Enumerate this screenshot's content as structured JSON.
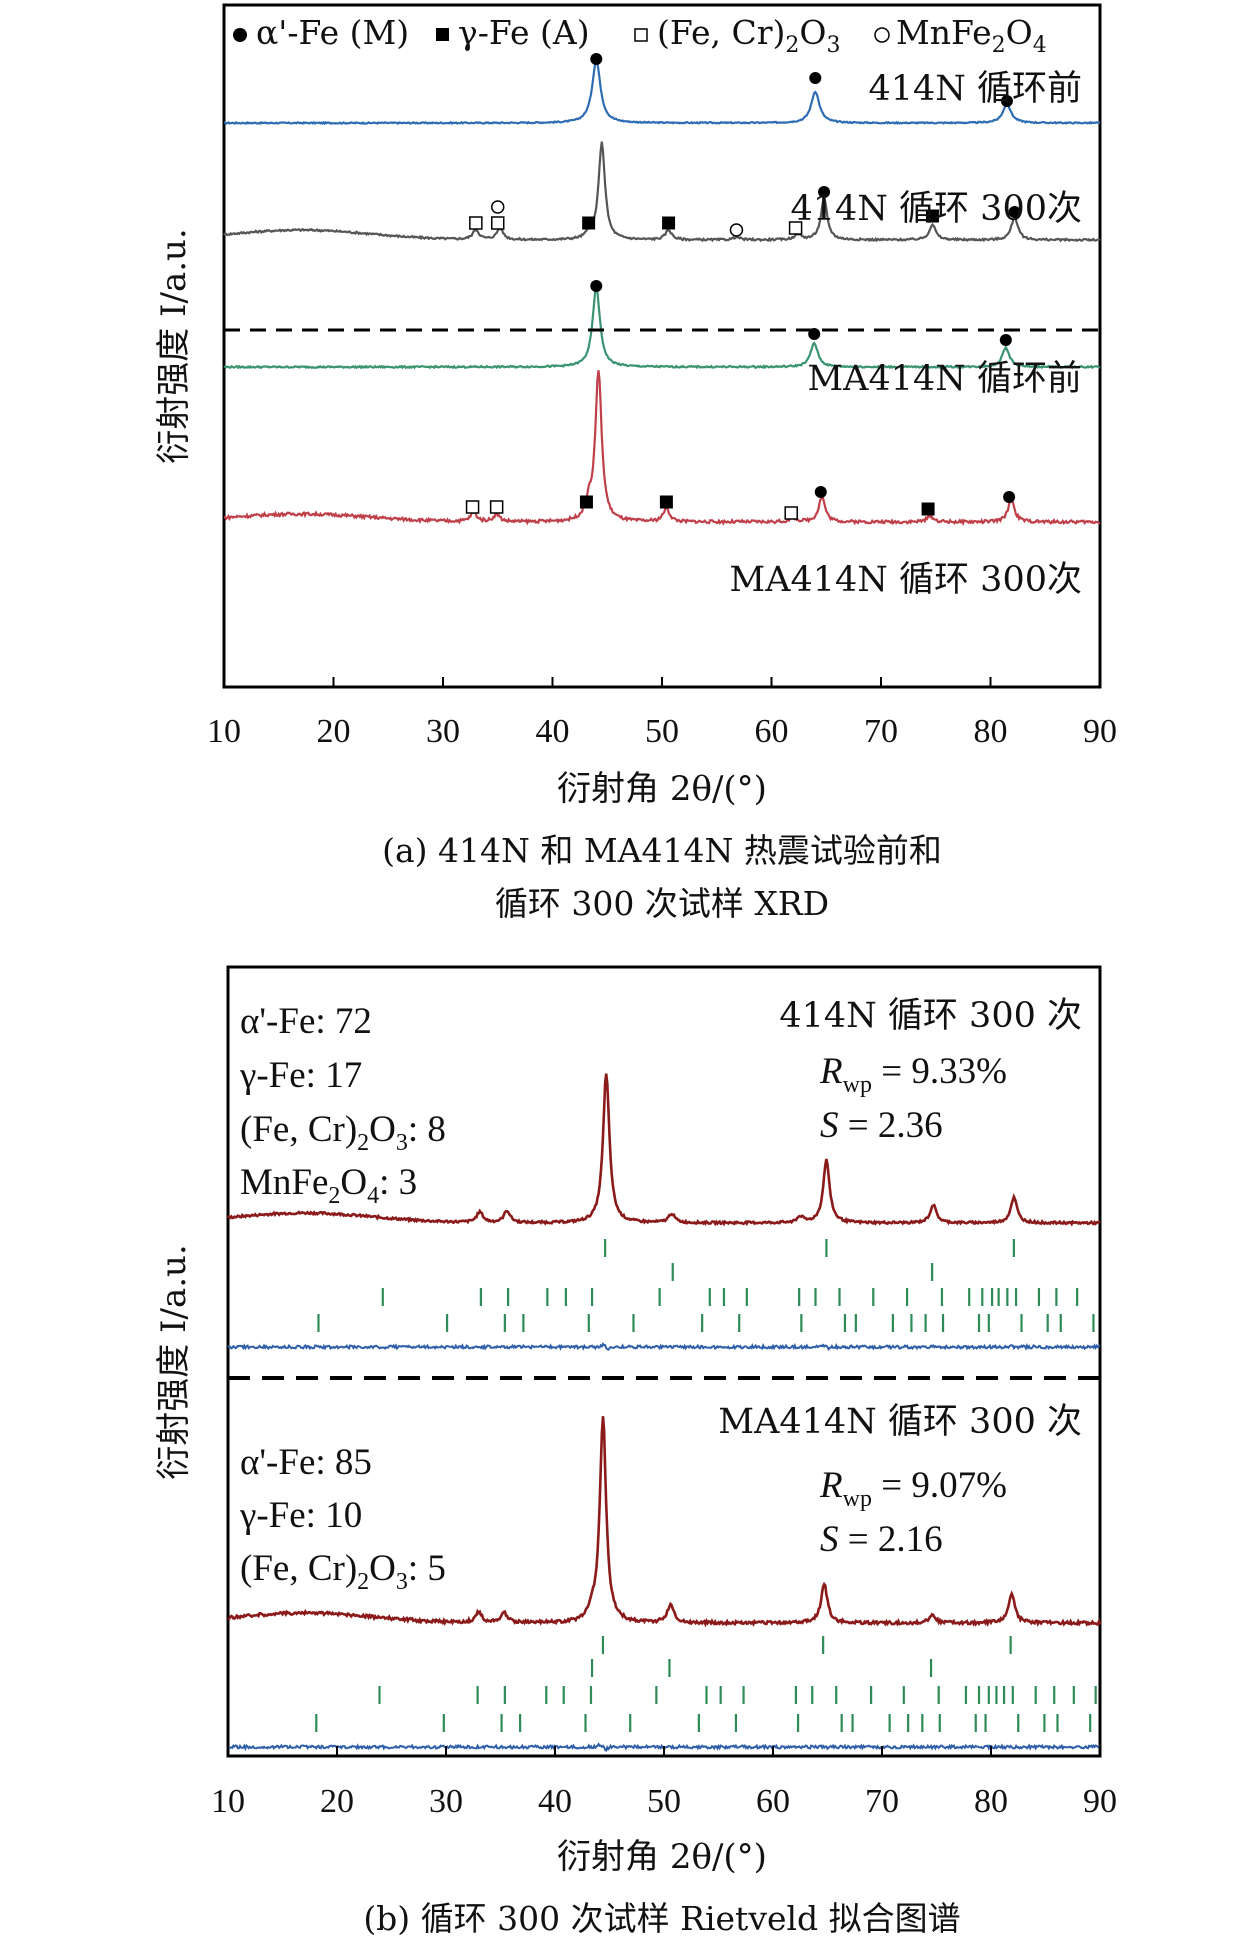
{
  "chart_data": [
    {
      "panel": "a",
      "type": "line",
      "caption_line1": "(a) 414N 和 MA414N 热震试验前和",
      "caption_line2": "循环 300 次试样 XRD",
      "xlabel": "衍射角 2θ/(°)",
      "ylabel": "衍射强度 I/a.u.",
      "xlim": [
        10,
        90
      ],
      "xticks": [
        "10",
        "20",
        "30",
        "40",
        "50",
        "60",
        "70",
        "80",
        "90"
      ],
      "legend": [
        {
          "symbol": "filled-circle",
          "label": "α'-Fe (M)"
        },
        {
          "symbol": "filled-square",
          "label": "γ-Fe (A)"
        },
        {
          "symbol": "open-square",
          "label": "(Fe, Cr)2O3"
        },
        {
          "symbol": "open-circle",
          "label": "MnFe2O4"
        }
      ],
      "series": [
        {
          "name": "414N 循环前",
          "color": "#2e6db4",
          "peaks": [
            [
              44.0,
              1.0
            ],
            [
              64.0,
              0.5
            ],
            [
              81.5,
              0.3
            ]
          ],
          "markers": [
            {
              "x": 44.0,
              "phase": "filled-circle"
            },
            {
              "x": 64.0,
              "phase": "filled-circle"
            },
            {
              "x": 81.5,
              "phase": "filled-circle"
            }
          ]
        },
        {
          "name": "414N 循环 300次",
          "color": "#555555",
          "peaks": [
            [
              33.0,
              0.1
            ],
            [
              35.2,
              0.12
            ],
            [
              43.4,
              0.06
            ],
            [
              44.5,
              1.0
            ],
            [
              50.6,
              0.1
            ],
            [
              56.8,
              0.03
            ],
            [
              62.4,
              0.06
            ],
            [
              64.8,
              0.42
            ],
            [
              74.7,
              0.16
            ],
            [
              82.2,
              0.24
            ]
          ],
          "markers": [
            {
              "x": 33.0,
              "phase": "open-square"
            },
            {
              "x": 35.0,
              "phase": "open-square"
            },
            {
              "x": 35.0,
              "phase": "open-circle"
            },
            {
              "x": 43.3,
              "phase": "filled-square"
            },
            {
              "x": 50.6,
              "phase": "filled-square"
            },
            {
              "x": 56.8,
              "phase": "open-circle"
            },
            {
              "x": 62.2,
              "phase": "open-square"
            },
            {
              "x": 64.8,
              "phase": "filled-circle"
            },
            {
              "x": 74.7,
              "phase": "filled-square"
            },
            {
              "x": 82.2,
              "phase": "filled-circle"
            }
          ]
        },
        {
          "name": "MA414N 循环前",
          "color": "#3a9470",
          "peaks": [
            [
              44.0,
              1.0
            ],
            [
              63.9,
              0.3
            ],
            [
              81.4,
              0.24
            ]
          ],
          "markers": [
            {
              "x": 44.0,
              "phase": "filled-circle"
            },
            {
              "x": 63.9,
              "phase": "filled-circle"
            },
            {
              "x": 81.4,
              "phase": "filled-circle"
            }
          ]
        },
        {
          "name": "MA414N 循环 300次",
          "color": "#c0404a",
          "peaks": [
            [
              32.8,
              0.06
            ],
            [
              34.9,
              0.05
            ],
            [
              43.3,
              0.1
            ],
            [
              44.2,
              1.0
            ],
            [
              50.4,
              0.09
            ],
            [
              62.0,
              0.03
            ],
            [
              64.6,
              0.17
            ],
            [
              74.5,
              0.04
            ],
            [
              81.9,
              0.15
            ]
          ],
          "markers": [
            {
              "x": 32.7,
              "phase": "open-square"
            },
            {
              "x": 34.9,
              "phase": "open-square"
            },
            {
              "x": 43.1,
              "phase": "filled-square"
            },
            {
              "x": 50.4,
              "phase": "filled-square"
            },
            {
              "x": 61.8,
              "phase": "open-square"
            },
            {
              "x": 64.5,
              "phase": "filled-circle"
            },
            {
              "x": 74.3,
              "phase": "filled-square"
            },
            {
              "x": 81.7,
              "phase": "filled-circle"
            }
          ]
        }
      ]
    },
    {
      "panel": "b",
      "type": "line",
      "caption": "(b) 循环 300 次试样 Rietveld 拟合图谱",
      "xlabel": "衍射角 2θ/(°)",
      "ylabel": "衍射强度 I/a.u.",
      "xlim": [
        10,
        90
      ],
      "xticks": [
        "10",
        "20",
        "30",
        "40",
        "50",
        "60",
        "70",
        "80",
        "90"
      ],
      "subplots": [
        {
          "name": "414N 循环 300 次",
          "rwp": "9.33%",
          "s": "2.36",
          "phase_fractions": [
            {
              "label": "α'-Fe",
              "value": "72"
            },
            {
              "label": "γ-Fe",
              "value": "17"
            },
            {
              "label": "(Fe, Cr)2O3",
              "value": "8"
            },
            {
              "label": "MnFe2O4",
              "value": "3"
            }
          ],
          "observed_color": "#8b1a1a",
          "difference_color": "#2f5fa8",
          "tick_color": "#2e8b57",
          "peaks": [
            [
              33.1,
              0.07
            ],
            [
              35.6,
              0.08
            ],
            [
              44.7,
              1.0
            ],
            [
              50.7,
              0.06
            ],
            [
              62.5,
              0.04
            ],
            [
              64.9,
              0.42
            ],
            [
              74.7,
              0.12
            ],
            [
              82.1,
              0.17
            ]
          ],
          "reflection_rows": [
            [
              44.6,
              64.9,
              82.1
            ],
            [
              50.8,
              74.6
            ],
            [
              24.2,
              33.2,
              35.7,
              39.3,
              41.0,
              43.4,
              49.6,
              54.2,
              55.5,
              57.6,
              62.4,
              63.9,
              66.1,
              69.2,
              72.3,
              75.5,
              78.0,
              79.2,
              80.1,
              80.7,
              81.5,
              82.3,
              84.4,
              86.0,
              87.9
            ],
            [
              18.3,
              30.1,
              35.4,
              37.1,
              43.1,
              47.2,
              53.5,
              56.9,
              62.6,
              66.6,
              67.6,
              71.0,
              72.7,
              74.0,
              75.6,
              78.9,
              79.8,
              82.8,
              85.2,
              86.4,
              89.4
            ]
          ]
        },
        {
          "name": "MA414N 循环 300 次",
          "rwp": "9.07%",
          "s": "2.16",
          "phase_fractions": [
            {
              "label": "α'-Fe",
              "value": "85"
            },
            {
              "label": "γ-Fe",
              "value": "10"
            },
            {
              "label": "(Fe, Cr)2O3",
              "value": "5"
            }
          ],
          "observed_color": "#8b1a1a",
          "difference_color": "#2f5fa8",
          "tick_color": "#2e8b57",
          "peaks": [
            [
              33.0,
              0.05
            ],
            [
              35.3,
              0.05
            ],
            [
              43.4,
              0.04
            ],
            [
              44.4,
              1.0
            ],
            [
              50.6,
              0.09
            ],
            [
              64.7,
              0.19
            ],
            [
              74.6,
              0.04
            ],
            [
              81.9,
              0.14
            ]
          ],
          "reflection_rows": [
            [
              44.4,
              64.6,
              81.8
            ],
            [
              43.4,
              50.5,
              74.5
            ],
            [
              23.9,
              32.9,
              35.4,
              39.2,
              40.8,
              43.3,
              49.3,
              53.9,
              55.2,
              57.3,
              62.1,
              63.6,
              65.8,
              69.0,
              72.0,
              75.2,
              77.7,
              78.9,
              79.8,
              80.5,
              81.2,
              82.0,
              84.1,
              85.8,
              87.6,
              89.6
            ],
            [
              18.1,
              29.8,
              35.1,
              36.8,
              42.8,
              46.9,
              53.2,
              56.6,
              62.3,
              66.3,
              67.3,
              70.7,
              72.4,
              73.7,
              75.3,
              78.6,
              79.5,
              82.5,
              84.9,
              86.1,
              89.1
            ]
          ]
        }
      ]
    }
  ]
}
